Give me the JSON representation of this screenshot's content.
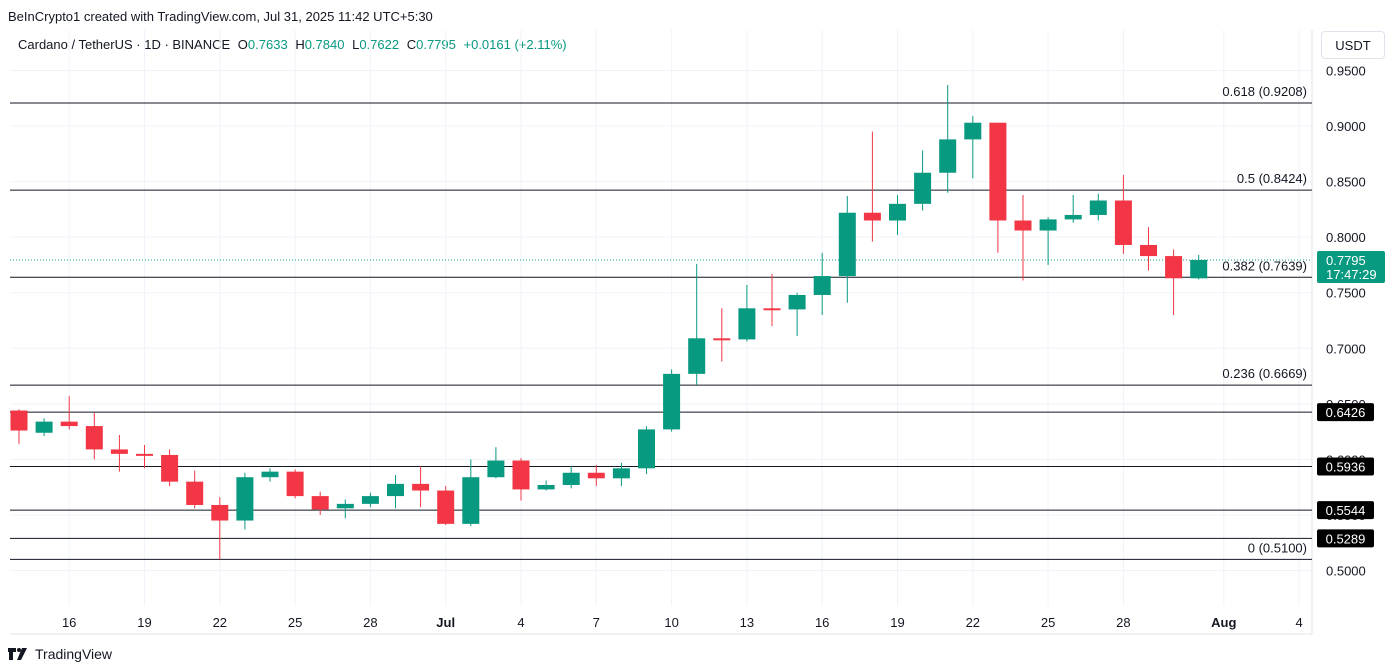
{
  "header": {
    "credit": "BeInCrypto1 created with TradingView.com, Jul 31, 2025 11:42 UTC+5:30",
    "symbol": "Cardano / TetherUS · 1D · BINANCE",
    "open_label": "O",
    "open": "0.7633",
    "high_label": "H",
    "high": "0.7840",
    "low_label": "L",
    "low": "0.7622",
    "close_label": "C",
    "close": "0.7795",
    "change": "+0.0161 (+2.11%)"
  },
  "currency": "USDT",
  "footer": {
    "logo_text": "TradingView",
    "logo_icon": "tradingview-logo-icon"
  },
  "colors": {
    "up": "#089981",
    "down": "#f23645",
    "price_tag": "#089981",
    "level_tag": "#000000"
  },
  "chart_data": {
    "type": "candlestick",
    "ylim": [
      0.48,
      0.96
    ],
    "y_ticks": [
      "0.9500",
      "0.9000",
      "0.8500",
      "0.8000",
      "0.7500",
      "0.7000",
      "0.6500",
      "0.6000",
      "0.5500",
      "0.5000"
    ],
    "x_tick_labels": [
      "16",
      "19",
      "22",
      "25",
      "28",
      "Jul",
      "4",
      "7",
      "10",
      "13",
      "16",
      "19",
      "22",
      "25",
      "28",
      "Aug",
      "4"
    ],
    "candles": [
      {
        "date": "Jun 14",
        "o": 0.644,
        "h": 0.645,
        "l": 0.614,
        "c": 0.626
      },
      {
        "date": "Jun 15",
        "o": 0.624,
        "h": 0.637,
        "l": 0.621,
        "c": 0.634
      },
      {
        "date": "Jun 16",
        "o": 0.634,
        "h": 0.657,
        "l": 0.627,
        "c": 0.63
      },
      {
        "date": "Jun 17",
        "o": 0.63,
        "h": 0.642,
        "l": 0.6,
        "c": 0.609
      },
      {
        "date": "Jun 18",
        "o": 0.609,
        "h": 0.622,
        "l": 0.589,
        "c": 0.605
      },
      {
        "date": "Jun 19",
        "o": 0.605,
        "h": 0.613,
        "l": 0.592,
        "c": 0.604
      },
      {
        "date": "Jun 20",
        "o": 0.604,
        "h": 0.609,
        "l": 0.576,
        "c": 0.58
      },
      {
        "date": "Jun 21",
        "o": 0.58,
        "h": 0.59,
        "l": 0.556,
        "c": 0.559
      },
      {
        "date": "Jun 22",
        "o": 0.559,
        "h": 0.566,
        "l": 0.51,
        "c": 0.545
      },
      {
        "date": "Jun 23",
        "o": 0.545,
        "h": 0.588,
        "l": 0.537,
        "c": 0.584
      },
      {
        "date": "Jun 24",
        "o": 0.584,
        "h": 0.592,
        "l": 0.58,
        "c": 0.589
      },
      {
        "date": "Jun 25",
        "o": 0.589,
        "h": 0.591,
        "l": 0.565,
        "c": 0.567
      },
      {
        "date": "Jun 26",
        "o": 0.567,
        "h": 0.571,
        "l": 0.55,
        "c": 0.555
      },
      {
        "date": "Jun 27",
        "o": 0.556,
        "h": 0.564,
        "l": 0.547,
        "c": 0.56
      },
      {
        "date": "Jun 28",
        "o": 0.56,
        "h": 0.57,
        "l": 0.557,
        "c": 0.567
      },
      {
        "date": "Jun 29",
        "o": 0.567,
        "h": 0.586,
        "l": 0.556,
        "c": 0.578
      },
      {
        "date": "Jun 30",
        "o": 0.578,
        "h": 0.594,
        "l": 0.557,
        "c": 0.572
      },
      {
        "date": "Jul 1",
        "o": 0.572,
        "h": 0.576,
        "l": 0.541,
        "c": 0.542
      },
      {
        "date": "Jul 2",
        "o": 0.542,
        "h": 0.6,
        "l": 0.54,
        "c": 0.584
      },
      {
        "date": "Jul 3",
        "o": 0.584,
        "h": 0.611,
        "l": 0.583,
        "c": 0.599
      },
      {
        "date": "Jul 4",
        "o": 0.599,
        "h": 0.601,
        "l": 0.563,
        "c": 0.573
      },
      {
        "date": "Jul 5",
        "o": 0.573,
        "h": 0.581,
        "l": 0.572,
        "c": 0.577
      },
      {
        "date": "Jul 6",
        "o": 0.577,
        "h": 0.594,
        "l": 0.574,
        "c": 0.588
      },
      {
        "date": "Jul 7",
        "o": 0.588,
        "h": 0.595,
        "l": 0.576,
        "c": 0.583
      },
      {
        "date": "Jul 8",
        "o": 0.583,
        "h": 0.597,
        "l": 0.576,
        "c": 0.592
      },
      {
        "date": "Jul 9",
        "o": 0.592,
        "h": 0.63,
        "l": 0.587,
        "c": 0.627
      },
      {
        "date": "Jul 10",
        "o": 0.627,
        "h": 0.681,
        "l": 0.625,
        "c": 0.677
      },
      {
        "date": "Jul 11",
        "o": 0.677,
        "h": 0.776,
        "l": 0.667,
        "c": 0.709
      },
      {
        "date": "Jul 12",
        "o": 0.709,
        "h": 0.736,
        "l": 0.688,
        "c": 0.708
      },
      {
        "date": "Jul 13",
        "o": 0.708,
        "h": 0.757,
        "l": 0.706,
        "c": 0.736
      },
      {
        "date": "Jul 14",
        "o": 0.736,
        "h": 0.767,
        "l": 0.72,
        "c": 0.735
      },
      {
        "date": "Jul 15",
        "o": 0.735,
        "h": 0.75,
        "l": 0.711,
        "c": 0.748
      },
      {
        "date": "Jul 16",
        "o": 0.748,
        "h": 0.786,
        "l": 0.73,
        "c": 0.765
      },
      {
        "date": "Jul 17",
        "o": 0.765,
        "h": 0.837,
        "l": 0.741,
        "c": 0.822
      },
      {
        "date": "Jul 18",
        "o": 0.822,
        "h": 0.895,
        "l": 0.796,
        "c": 0.815
      },
      {
        "date": "Jul 19",
        "o": 0.815,
        "h": 0.838,
        "l": 0.802,
        "c": 0.83
      },
      {
        "date": "Jul 20",
        "o": 0.83,
        "h": 0.878,
        "l": 0.824,
        "c": 0.858
      },
      {
        "date": "Jul 21",
        "o": 0.858,
        "h": 0.937,
        "l": 0.84,
        "c": 0.888
      },
      {
        "date": "Jul 22",
        "o": 0.888,
        "h": 0.909,
        "l": 0.853,
        "c": 0.903
      },
      {
        "date": "Jul 23",
        "o": 0.903,
        "h": 0.903,
        "l": 0.786,
        "c": 0.815
      },
      {
        "date": "Jul 24",
        "o": 0.815,
        "h": 0.838,
        "l": 0.761,
        "c": 0.806
      },
      {
        "date": "Jul 25",
        "o": 0.806,
        "h": 0.818,
        "l": 0.775,
        "c": 0.816
      },
      {
        "date": "Jul 26",
        "o": 0.816,
        "h": 0.838,
        "l": 0.813,
        "c": 0.82
      },
      {
        "date": "Jul 27",
        "o": 0.82,
        "h": 0.839,
        "l": 0.815,
        "c": 0.833
      },
      {
        "date": "Jul 28",
        "o": 0.833,
        "h": 0.856,
        "l": 0.785,
        "c": 0.793
      },
      {
        "date": "Jul 29",
        "o": 0.793,
        "h": 0.809,
        "l": 0.77,
        "c": 0.783
      },
      {
        "date": "Jul 30",
        "o": 0.783,
        "h": 0.789,
        "l": 0.73,
        "c": 0.763
      },
      {
        "date": "Jul 31",
        "o": 0.763,
        "h": 0.784,
        "l": 0.762,
        "c": 0.7795
      }
    ],
    "fib_levels": [
      {
        "label": "0.618 (0.9208)",
        "value": 0.9208
      },
      {
        "label": "0.5 (0.8424)",
        "value": 0.8424
      },
      {
        "label": "0.382 (0.7639)",
        "value": 0.7639
      },
      {
        "label": "0.236 (0.6669)",
        "value": 0.6669
      },
      {
        "label": "0 (0.5100)",
        "value": 0.51
      }
    ],
    "support_levels": [
      {
        "label": "0.6426",
        "value": 0.6426
      },
      {
        "label": "0.5936",
        "value": 0.5936
      },
      {
        "label": "0.5544",
        "value": 0.5544
      },
      {
        "label": "0.5289",
        "value": 0.5289
      }
    ],
    "last_price": {
      "value": 0.7795,
      "label": "0.7795",
      "countdown": "17:47:29"
    }
  }
}
